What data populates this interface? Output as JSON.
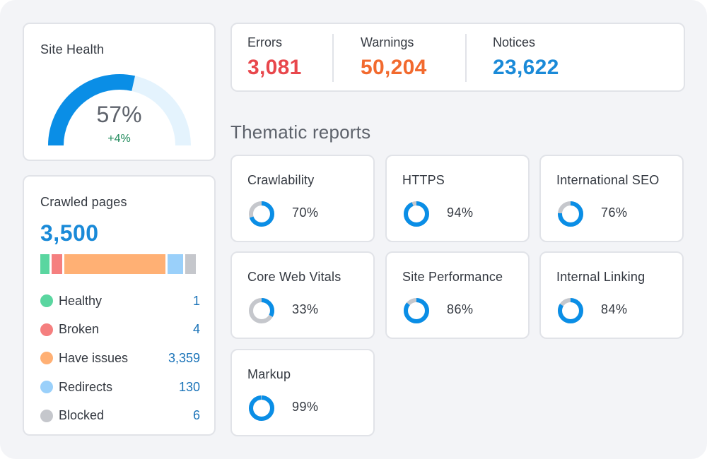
{
  "site_health": {
    "title": "Site Health",
    "percent": 57,
    "value_text": "57%",
    "delta": "+4%",
    "colors": {
      "fill": "#0a8ee6",
      "track": "#e4f3fd",
      "delta": "#1f8a5b"
    }
  },
  "issues": {
    "items": [
      {
        "label": "Errors",
        "value": "3,081",
        "color": "#e8474c"
      },
      {
        "label": "Warnings",
        "value": "50,204",
        "color": "#f26a2e"
      },
      {
        "label": "Notices",
        "value": "23,622",
        "color": "#1a8ad8"
      }
    ]
  },
  "crawled_pages": {
    "title": "Crawled pages",
    "total": "3,500",
    "segments": [
      {
        "label": "Healthy",
        "count": "1",
        "share": 0.06,
        "color": "#5ad6a0"
      },
      {
        "label": "Broken",
        "count": "4",
        "share": 0.07,
        "color": "#f57f7f"
      },
      {
        "label": "Have issues",
        "count": "3,359",
        "share": 0.67,
        "color": "#ffb074"
      },
      {
        "label": "Redirects",
        "count": "130",
        "share": 0.1,
        "color": "#9ad0fa"
      },
      {
        "label": "Blocked",
        "count": "6",
        "share": 0.07,
        "color": "#c5c7cc"
      }
    ]
  },
  "thematic_reports": {
    "title": "Thematic reports",
    "colors": {
      "fill": "#0a8ee6",
      "track": "#c5c7cc"
    },
    "items": [
      {
        "label": "Crawlability",
        "value": "70%",
        "percent": 70
      },
      {
        "label": "HTTPS",
        "value": "94%",
        "percent": 94
      },
      {
        "label": "International SEO",
        "value": "76%",
        "percent": 76
      },
      {
        "label": "Core Web Vitals",
        "value": "33%",
        "percent": 33
      },
      {
        "label": "Site Performance",
        "value": "86%",
        "percent": 86
      },
      {
        "label": "Internal Linking",
        "value": "84%",
        "percent": 84
      },
      {
        "label": "Markup",
        "value": "99%",
        "percent": 99
      }
    ]
  }
}
